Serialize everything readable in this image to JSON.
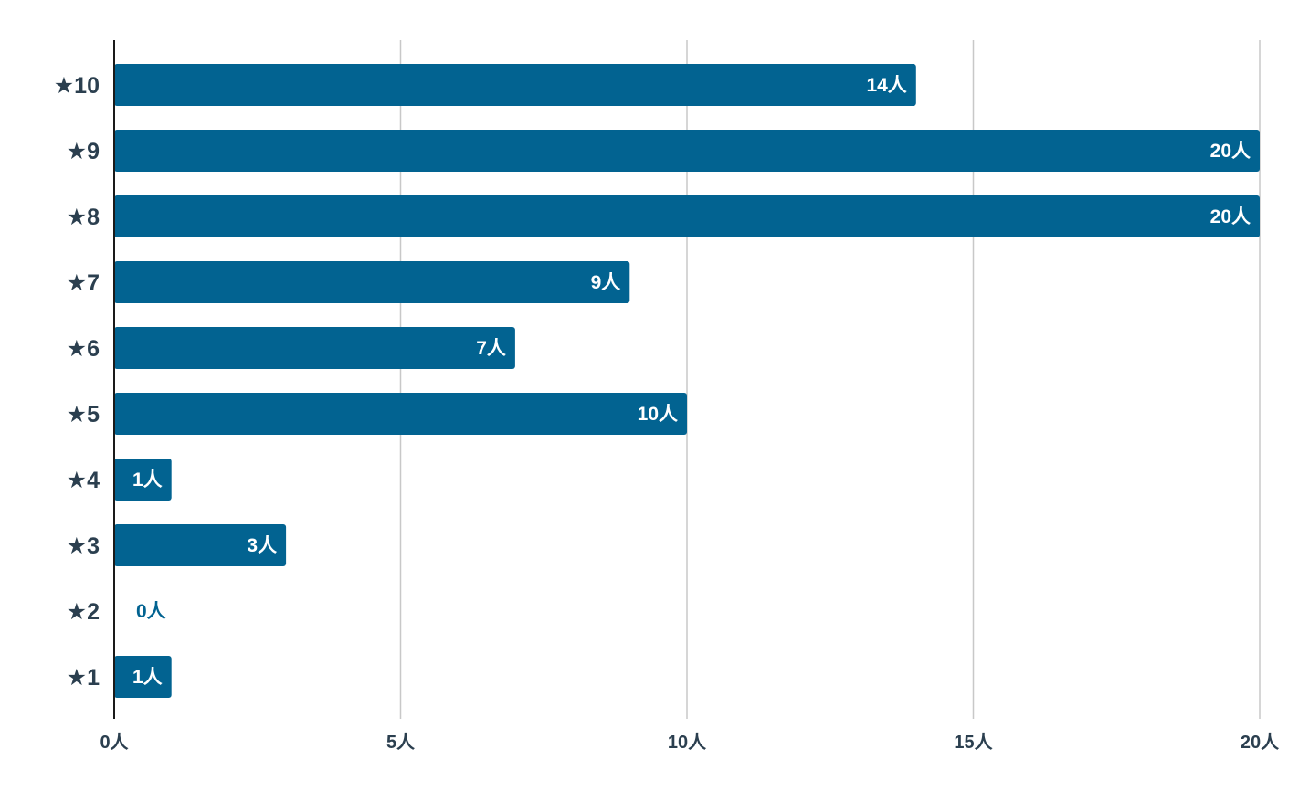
{
  "chart_data": {
    "type": "bar",
    "orientation": "horizontal",
    "categories": [
      "★10",
      "★9",
      "★8",
      "★7",
      "★6",
      "★5",
      "★4",
      "★3",
      "★2",
      "★1"
    ],
    "values": [
      14,
      20,
      20,
      9,
      7,
      10,
      1,
      3,
      0,
      1
    ],
    "value_labels": [
      "14人",
      "20人",
      "20人",
      "9人",
      "7人",
      "10人",
      "1人",
      "3人",
      "0人",
      "1人"
    ],
    "xlim": [
      0,
      20
    ],
    "x_ticks": [
      0,
      5,
      10,
      15,
      20
    ],
    "x_tick_labels": [
      "0人",
      "5人",
      "10人",
      "15人",
      "20人"
    ],
    "title": "",
    "xlabel": "",
    "ylabel": "",
    "grid": true,
    "legend": "none",
    "colors": {
      "bar": "#026391",
      "label_inside": "#ffffff",
      "label_outside": "#026391",
      "text": "#2b3f4f",
      "grid": "#c8c8c8",
      "axis": "#1a1a1a"
    }
  }
}
